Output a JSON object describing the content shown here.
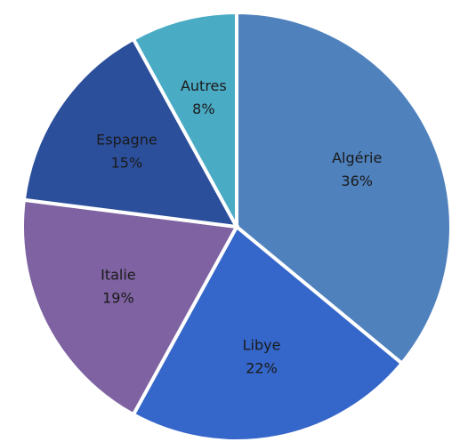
{
  "chart_data": {
    "type": "pie",
    "categories": [
      "Algérie",
      "Libye",
      "Italie",
      "Espagne",
      "Autres"
    ],
    "values": [
      36,
      22,
      19,
      15,
      8
    ],
    "value_labels": [
      "36%",
      "22%",
      "19%",
      "15%",
      "8%"
    ],
    "colors": [
      "#4f81bd",
      "#3566c9",
      "#7e62a1",
      "#2c4f9c",
      "#4aabc5"
    ]
  }
}
